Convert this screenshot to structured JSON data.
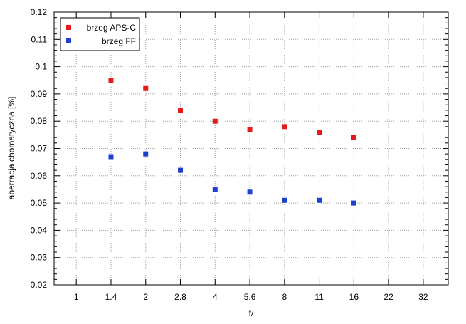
{
  "chart_data": {
    "type": "scatter",
    "categories": [
      "1",
      "1.4",
      "2",
      "2.8",
      "4",
      "5.6",
      "8",
      "11",
      "16",
      "22",
      "32"
    ],
    "xlabel": "f/",
    "ylabel": "aberracja chomatyczna [%]",
    "ylim": [
      0.02,
      0.12
    ],
    "yticks": [
      "0.02",
      "0.03",
      "0.04",
      "0.05",
      "0.06",
      "0.07",
      "0.08",
      "0.09",
      "0.1",
      "0.11",
      "0.12"
    ],
    "grid": true,
    "legend_position": "top-left",
    "series": [
      {
        "name": "brzeg APS-C",
        "color": "#e41a1c",
        "x": [
          "1.4",
          "2",
          "2.8",
          "4",
          "5.6",
          "8",
          "11",
          "16"
        ],
        "values": [
          0.095,
          0.092,
          0.084,
          0.08,
          0.077,
          0.078,
          0.076,
          0.074
        ]
      },
      {
        "name": "brzeg FF",
        "color": "#1f3fcf",
        "x": [
          "1.4",
          "2",
          "2.8",
          "4",
          "5.6",
          "8",
          "11",
          "16"
        ],
        "values": [
          0.067,
          0.068,
          0.062,
          0.055,
          0.054,
          0.051,
          0.051,
          0.05
        ]
      }
    ]
  }
}
